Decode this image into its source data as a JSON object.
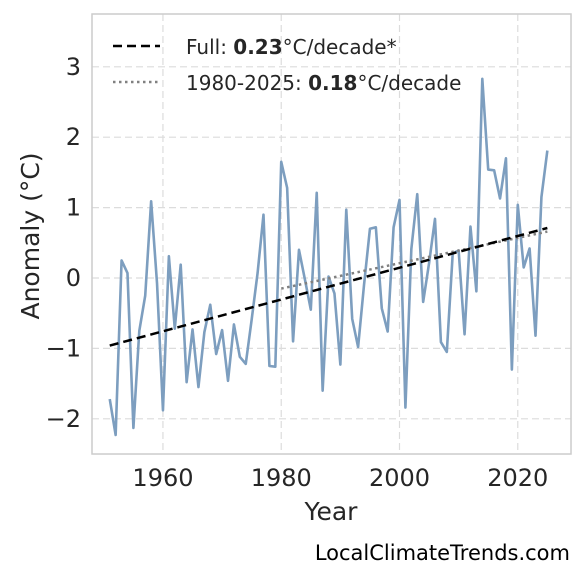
{
  "chart_data": {
    "type": "line",
    "xlabel": "Year",
    "ylabel": "Anomaly (°C)",
    "xlim": [
      1948,
      2029
    ],
    "ylim": [
      -2.5,
      3.75
    ],
    "xticks": [
      1960,
      1980,
      2000,
      2020
    ],
    "yticks": [
      -2,
      -1,
      0,
      1,
      2,
      3
    ],
    "ytick_labels": [
      "−2",
      "−1",
      "0",
      "1",
      "2",
      "3"
    ],
    "grid": true,
    "legend_position": "top-left",
    "series": [
      {
        "x": [
          1951,
          1952,
          1953,
          1954,
          1955,
          1956,
          1957,
          1958,
          1959,
          1960,
          1961,
          1962,
          1963,
          1964,
          1965,
          1966,
          1967,
          1968,
          1969,
          1970,
          1971,
          1972,
          1973,
          1974,
          1975,
          1976,
          1977,
          1978,
          1979,
          1980,
          1981,
          1982,
          1983,
          1984,
          1985,
          1986,
          1987,
          1988,
          1989,
          1990,
          1991,
          1992,
          1993,
          1994,
          1995,
          1996,
          1997,
          1998,
          1999,
          2000,
          2001,
          2002,
          2003,
          2004,
          2005,
          2006,
          2007,
          2008,
          2009,
          2010,
          2011,
          2012,
          2013,
          2014,
          2015,
          2016,
          2017,
          2018,
          2019,
          2020,
          2021,
          2022,
          2023,
          2024,
          2025
        ],
        "values": [
          -1.72,
          -2.23,
          0.25,
          0.07,
          -2.13,
          -0.75,
          -0.25,
          1.09,
          -0.08,
          -1.88,
          0.31,
          -0.72,
          0.19,
          -1.48,
          -0.73,
          -1.55,
          -0.77,
          -0.38,
          -1.08,
          -0.74,
          -1.46,
          -0.66,
          -1.12,
          -1.22,
          -0.59,
          0.07,
          0.9,
          -1.25,
          -1.26,
          1.65,
          1.28,
          -0.9,
          0.4,
          -0.02,
          -0.45,
          1.21,
          -1.6,
          0.02,
          -0.22,
          -1.23,
          0.97,
          -0.58,
          -0.98,
          -0.1,
          0.7,
          0.72,
          -0.43,
          -0.76,
          0.72,
          1.11,
          -1.84,
          0.41,
          1.19,
          -0.34,
          0.21,
          0.84,
          -0.91,
          -1.05,
          0.35,
          0.39,
          -0.8,
          0.73,
          -0.19,
          2.83,
          1.54,
          1.53,
          1.13,
          1.7,
          -1.3,
          1.04,
          0.15,
          0.42,
          -0.82,
          1.15,
          1.81
        ],
        "color": "#7d9ebf"
      },
      {
        "name": "Full: 0.23°C/decade*",
        "type": "trend",
        "x": [
          1951,
          2025
        ],
        "values": [
          -0.96,
          0.71
        ],
        "style": "dashed",
        "color": "#000000"
      },
      {
        "name": "1980-2025: 0.18°C/decade",
        "type": "trend",
        "x": [
          1980,
          2025
        ],
        "values": [
          -0.15,
          0.66
        ],
        "style": "dotted",
        "color": "#808080"
      }
    ],
    "legend": {
      "full_prefix": "Full: ",
      "full_value": "0.23",
      "full_suffix": "°C/decade*",
      "recent_prefix": "1980-2025: ",
      "recent_value": "0.18",
      "recent_suffix": "°C/decade"
    }
  },
  "watermark": "LocalClimateTrends.com",
  "colors": {
    "grid": "#dcdcdc",
    "frame": "#cccccc",
    "series": "#7d9ebf"
  }
}
